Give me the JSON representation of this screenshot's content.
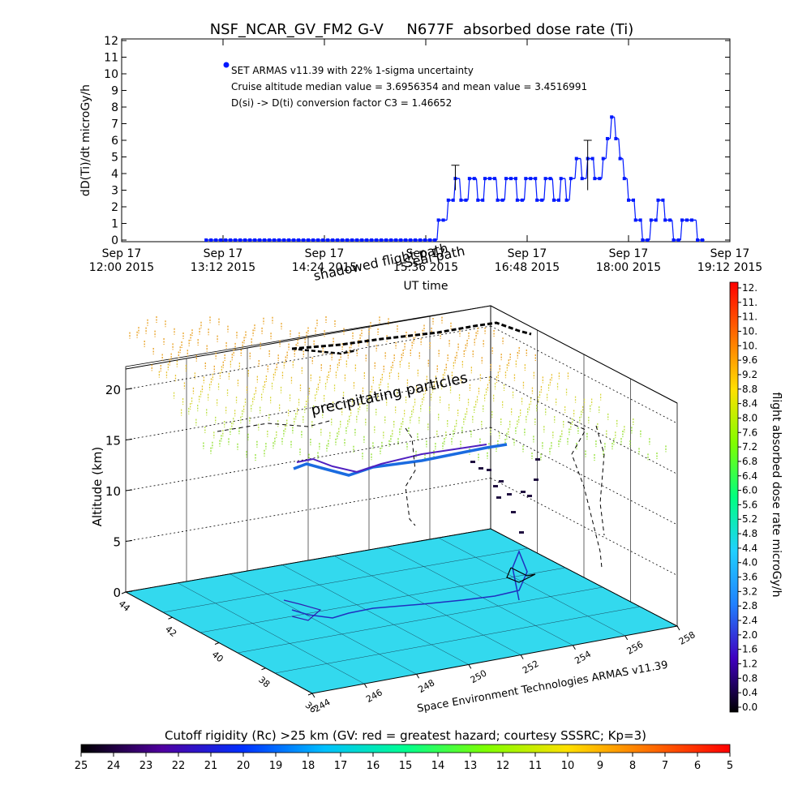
{
  "header": {
    "title": "NSF_NCAR_GV_FM2 G-V     N677F  absorbed dose rate (Ti)"
  },
  "top_chart": {
    "ylabel": "dD(Ti)/dt microGy/h",
    "xlabel": "UT time",
    "annotations": [
      "SET ARMAS v11.39 with 22% 1-sigma uncertainty",
      "Cruise altitude median value = 3.6956354 and mean value = 3.4516991",
      "D(si) -> D(ti) conversion factor C3 = 1.46652"
    ],
    "overlay_labels": [
      "shadowed flight path",
      "Seal path"
    ]
  },
  "chart_data": [
    {
      "type": "scatter",
      "title": "NSF_NCAR_GV_FM2 G-V     N677F  absorbed dose rate (Ti)",
      "xlabel": "UT time",
      "ylabel": "dD(Ti)/dt microGy/h",
      "ylim": [
        0,
        12
      ],
      "yticks": [
        0,
        1,
        2,
        3,
        4,
        5,
        6,
        7,
        8,
        9,
        10,
        11,
        12
      ],
      "x_unit": "minutes after Sep 17 12:00 UT 2015",
      "xlim": [
        0,
        432
      ],
      "xtick_labels": [
        [
          "Sep 17",
          "12:00 2015"
        ],
        [
          "Sep 17",
          "13:12 2015"
        ],
        [
          "Sep 17",
          "14:24 2015"
        ],
        [
          "Sep 17",
          "15:36 2015"
        ],
        [
          "Sep 17",
          "16:48 2015"
        ],
        [
          "Sep 17",
          "18:00 2015"
        ],
        [
          "Sep 17",
          "19:12 2015"
        ]
      ],
      "marker_color": "#0018ff",
      "series": [
        {
          "name": "SET ARMAS v11.39 with 22% 1-sigma uncertainty",
          "segments": [
            {
              "x": [
                60,
                224
              ],
              "y": 0
            },
            {
              "x": [
                225,
                231
              ],
              "y": 1.2
            },
            {
              "x": [
                232,
                236
              ],
              "y": 2.4
            },
            {
              "x": [
                237,
                240
              ],
              "y": 3.7
            },
            {
              "x": [
                241,
                246
              ],
              "y": 2.4
            },
            {
              "x": [
                247,
                252
              ],
              "y": 3.7
            },
            {
              "x": [
                253,
                257
              ],
              "y": 2.4
            },
            {
              "x": [
                258,
                266
              ],
              "y": 3.7
            },
            {
              "x": [
                267,
                272
              ],
              "y": 2.4
            },
            {
              "x": [
                273,
                280
              ],
              "y": 3.7
            },
            {
              "x": [
                281,
                286
              ],
              "y": 2.4
            },
            {
              "x": [
                287,
                294
              ],
              "y": 3.7
            },
            {
              "x": [
                295,
                300
              ],
              "y": 2.4
            },
            {
              "x": [
                301,
                306
              ],
              "y": 3.7
            },
            {
              "x": [
                307,
                311
              ],
              "y": 2.4
            },
            {
              "x": [
                312,
                315
              ],
              "y": 3.7
            },
            {
              "x": [
                316,
                318
              ],
              "y": 2.4
            },
            {
              "x": [
                319,
                322
              ],
              "y": 3.7
            },
            {
              "x": [
                323,
                326
              ],
              "y": 4.9
            },
            {
              "x": [
                327,
                330
              ],
              "y": 3.7
            },
            {
              "x": [
                331,
                335
              ],
              "y": 4.9
            },
            {
              "x": [
                336,
                341
              ],
              "y": 3.7
            },
            {
              "x": [
                342,
                344
              ],
              "y": 4.9
            },
            {
              "x": [
                345,
                347
              ],
              "y": 6.1
            },
            {
              "x": [
                348,
                350
              ],
              "y": 7.4
            },
            {
              "x": [
                351,
                353
              ],
              "y": 6.1
            },
            {
              "x": [
                354,
                356
              ],
              "y": 4.9
            },
            {
              "x": [
                357,
                359
              ],
              "y": 3.7
            },
            {
              "x": [
                360,
                364
              ],
              "y": 2.4
            },
            {
              "x": [
                365,
                369
              ],
              "y": 1.2
            },
            {
              "x": [
                370,
                375
              ],
              "y": 0
            },
            {
              "x": [
                376,
                380
              ],
              "y": 1.2
            },
            {
              "x": [
                381,
                385
              ],
              "y": 2.4
            },
            {
              "x": [
                386,
                391
              ],
              "y": 1.2
            },
            {
              "x": [
                392,
                397
              ],
              "y": 0
            },
            {
              "x": [
                398,
                408
              ],
              "y": 1.2
            },
            {
              "x": [
                409,
                414
              ],
              "y": 0
            }
          ]
        }
      ],
      "error_bars": [
        {
          "x": 237,
          "y_top": 4.5
        },
        {
          "x": 331,
          "y_top": 6.0
        }
      ]
    },
    {
      "type": "scatter",
      "subtype": "3d_trajectory",
      "title": "precipitating particles",
      "zlabel": "Altitude (km)",
      "zticks": [
        0,
        5,
        10,
        15,
        20
      ],
      "zlim": [
        0,
        22
      ],
      "x_axis_label": "Space Environment Technologies ARMAS v11.39",
      "x_ticks": [
        244,
        246,
        248,
        250,
        252,
        254,
        256,
        258
      ],
      "y_ticks": [
        44,
        42,
        40,
        38,
        36
      ],
      "surface_color": "#33d9ee",
      "colorbar": {
        "label": "flight absorbed dose rate microGy/h",
        "ticks": [
          "12.",
          "11.",
          "11.",
          "10.",
          "10.",
          "9.6",
          "9.2",
          "8.8",
          "8.4",
          "8.0",
          "7.6",
          "7.2",
          "6.8",
          "6.4",
          "6.0",
          "5.6",
          "5.2",
          "4.8",
          "4.4",
          "4.0",
          "3.6",
          "3.2",
          "2.8",
          "2.4",
          "2.0",
          "1.6",
          "1.2",
          "0.8",
          "0.4",
          "0.0"
        ],
        "stops": [
          "#ff0000",
          "#ff7000",
          "#ffe000",
          "#80ff00",
          "#00ff80",
          "#20d0ff",
          "#2080ff",
          "#4000c0",
          "#000000"
        ]
      }
    },
    {
      "type": "heatmap",
      "subtype": "colorbar",
      "title": "Cutoff rigidity (Rc) >25 km (GV: red = greatest hazard; courtesy SSSRC; Kp=3)",
      "tick_labels": [
        "25",
        "24",
        "23",
        "22",
        "21",
        "20",
        "19",
        "18",
        "17",
        "16",
        "15",
        "14",
        "13",
        "12",
        "11",
        "10",
        "9",
        "8",
        "7",
        "6",
        "5"
      ],
      "stops": [
        "#000000",
        "#5000a0",
        "#0030ff",
        "#00c0ff",
        "#00ff90",
        "#80ff00",
        "#ffe000",
        "#ff7000",
        "#ff0000"
      ]
    }
  ]
}
